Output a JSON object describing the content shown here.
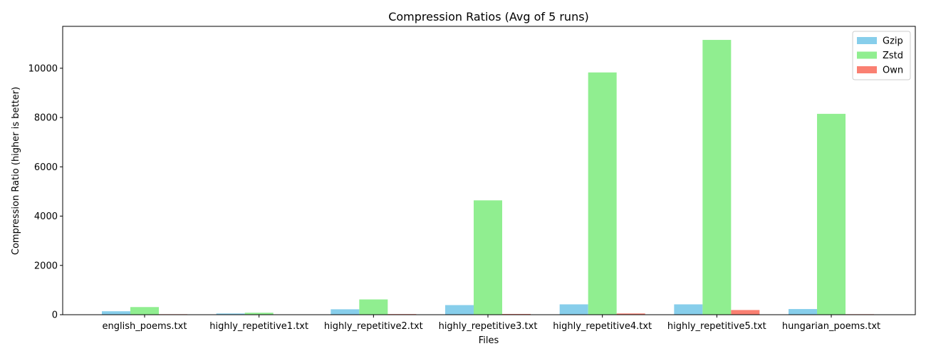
{
  "chart_data": {
    "type": "bar",
    "title": "Compression Ratios (Avg of 5 runs)",
    "xlabel": "Files",
    "ylabel": "Compression Ratio (higher is better)",
    "categories": [
      "english_poems.txt",
      "highly_repetitive1.txt",
      "highly_repetitive2.txt",
      "highly_repetitive3.txt",
      "highly_repetitive4.txt",
      "highly_repetitive5.txt",
      "hungarian_poems.txt"
    ],
    "series": [
      {
        "name": "Gzip",
        "color": "#87ceeb",
        "values": [
          140,
          50,
          220,
          390,
          420,
          420,
          230
        ]
      },
      {
        "name": "Zstd",
        "color": "#90ee90",
        "values": [
          310,
          80,
          620,
          4640,
          9830,
          11150,
          8150
        ]
      },
      {
        "name": "Own",
        "color": "#fa8072",
        "values": [
          20,
          5,
          25,
          30,
          50,
          190,
          20
        ]
      }
    ],
    "ylim": [
      0,
      11700
    ],
    "yticks": [
      0,
      2000,
      4000,
      6000,
      8000,
      10000
    ],
    "legend_position": "top-right",
    "grid": false
  }
}
